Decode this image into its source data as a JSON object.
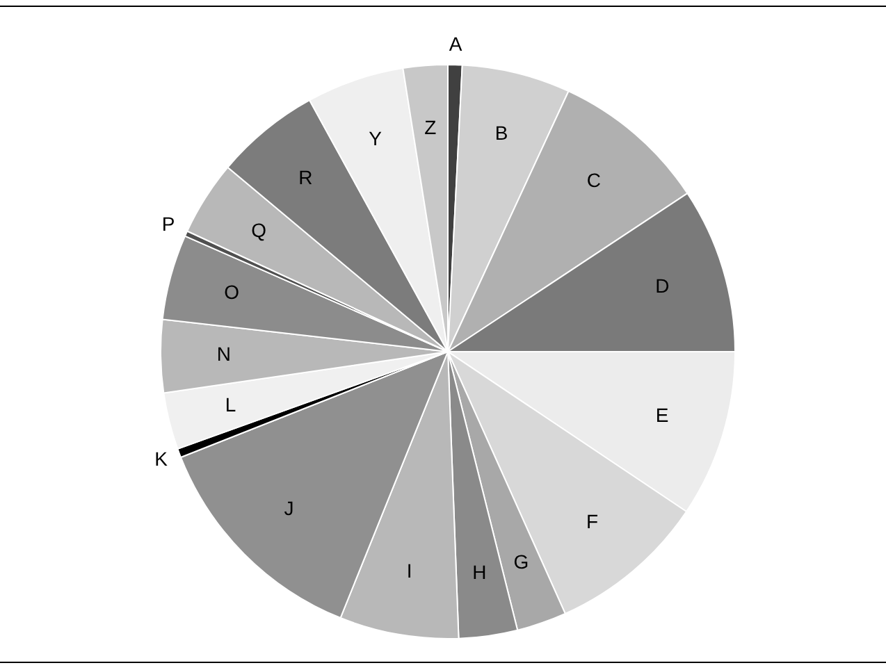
{
  "chart_data": {
    "type": "pie",
    "categories": [
      "A",
      "B",
      "C",
      "D",
      "E",
      "F",
      "G",
      "H",
      "I",
      "J",
      "K",
      "L",
      "N",
      "O",
      "P",
      "Q",
      "R",
      "Y",
      "Z"
    ],
    "values": [
      0.8,
      6.1,
      8.8,
      9.3,
      9.4,
      8.9,
      2.8,
      3.3,
      6.7,
      12.9,
      0.5,
      3.2,
      4.1,
      4.8,
      0.3,
      4.2,
      5.9,
      5.5,
      2.5
    ],
    "colors": [
      "#404040",
      "#d0d0d0",
      "#b0b0b0",
      "#7a7a7a",
      "#ececec",
      "#d8d8d8",
      "#a8a8a8",
      "#8a8a8a",
      "#b8b8b8",
      "#909090",
      "#000000",
      "#f0f0f0",
      "#b8b8b8",
      "#8c8c8c",
      "#505050",
      "#b8b8b8",
      "#7c7c7c",
      "#efefef",
      "#c8c8c8"
    ],
    "legend": false
  }
}
